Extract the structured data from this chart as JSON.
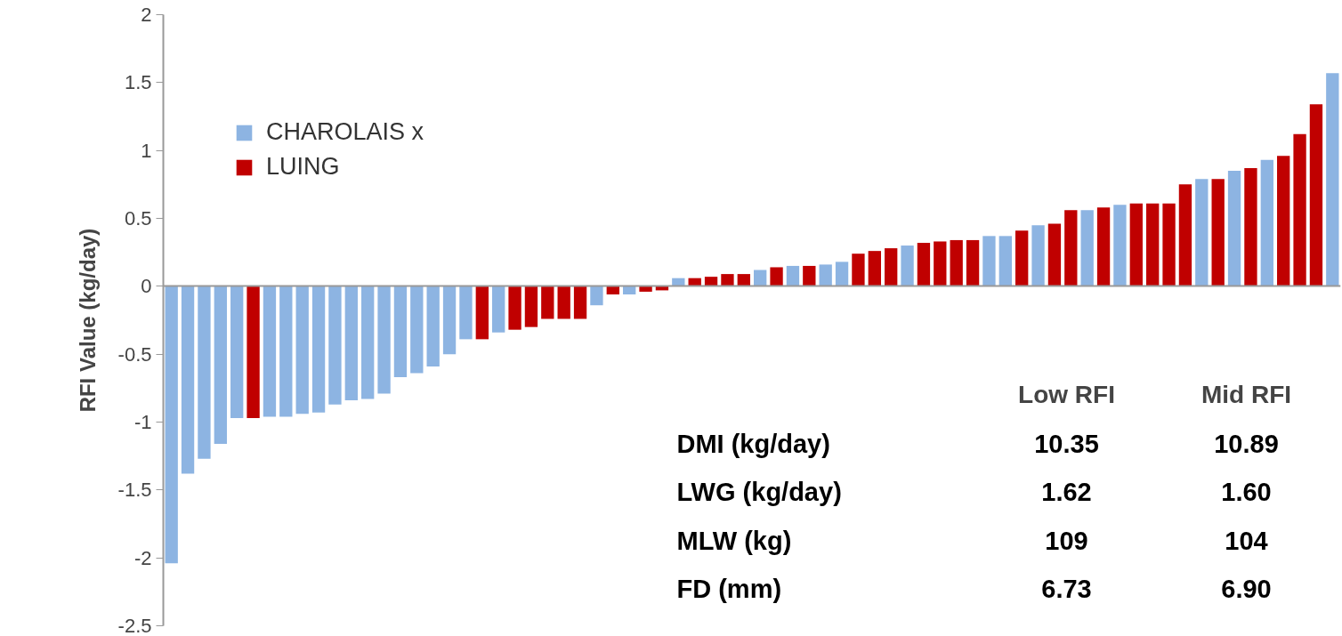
{
  "chart_data": {
    "type": "bar",
    "ylabel": "RFI Value (kg/day)",
    "categories": [
      null,
      null,
      null,
      null,
      null,
      null,
      null,
      null,
      null,
      null,
      null,
      null,
      null,
      null,
      null,
      null,
      null,
      null,
      null,
      null,
      null,
      null,
      null,
      null,
      null,
      null,
      null,
      null,
      null,
      null,
      null,
      null,
      null,
      null,
      null,
      null,
      null,
      null,
      null,
      null,
      null,
      null,
      null,
      null,
      null,
      null,
      null,
      null,
      null,
      null,
      null,
      null,
      null,
      null,
      null,
      null,
      null,
      null,
      null,
      null,
      null,
      null,
      null,
      null,
      null,
      null,
      null,
      null,
      null,
      null,
      null,
      null
    ],
    "series": [
      {
        "name": "CHAROLAIS x",
        "color": "#8db4e2",
        "values": [
          -2.04,
          -1.38,
          -1.27,
          -1.16,
          -0.97,
          null,
          -0.96,
          -0.96,
          -0.94,
          -0.93,
          -0.87,
          -0.84,
          -0.83,
          -0.79,
          -0.67,
          -0.64,
          -0.59,
          -0.5,
          -0.39,
          null,
          -0.34,
          null,
          null,
          null,
          null,
          null,
          -0.14,
          null,
          -0.06,
          null,
          null,
          0.06,
          null,
          null,
          null,
          null,
          0.12,
          null,
          0.15,
          null,
          0.16,
          0.18,
          null,
          null,
          null,
          0.3,
          null,
          null,
          null,
          null,
          0.37,
          0.37,
          null,
          0.45,
          null,
          null,
          0.56,
          null,
          0.6,
          null,
          null,
          null,
          null,
          0.79,
          null,
          0.85,
          null,
          0.93,
          null,
          null,
          null,
          1.57
        ]
      },
      {
        "name": "LUING",
        "color": "#c00000",
        "values": [
          null,
          null,
          null,
          null,
          null,
          -0.97,
          null,
          null,
          null,
          null,
          null,
          null,
          null,
          null,
          null,
          null,
          null,
          null,
          null,
          -0.39,
          null,
          -0.32,
          -0.3,
          -0.24,
          -0.24,
          -0.24,
          null,
          -0.06,
          null,
          -0.04,
          -0.03,
          null,
          0.06,
          0.07,
          0.09,
          0.09,
          null,
          0.14,
          null,
          0.15,
          null,
          null,
          0.24,
          0.26,
          0.28,
          null,
          0.32,
          0.33,
          0.34,
          0.34,
          null,
          null,
          0.41,
          null,
          0.46,
          0.56,
          null,
          0.58,
          null,
          0.61,
          0.61,
          0.61,
          0.75,
          null,
          0.79,
          null,
          0.87,
          null,
          0.96,
          1.12,
          1.34,
          null
        ]
      }
    ],
    "ylim": [
      -2.5,
      2
    ],
    "yticks": [
      -2.5,
      -2,
      -1.5,
      -1,
      -0.5,
      0,
      0.5,
      1,
      1.5,
      2
    ],
    "tick_labels": "y",
    "legend": "top left",
    "annotations": [
      "Low RFI",
      "Mid RFI",
      "DMI (kg/day)",
      "10.35",
      "10.89",
      "LWG (kg/day)",
      "1.62",
      "1.60",
      "MLW (kg)",
      "109",
      "104",
      "FD (mm)",
      "6.73",
      "6.90"
    ]
  }
}
